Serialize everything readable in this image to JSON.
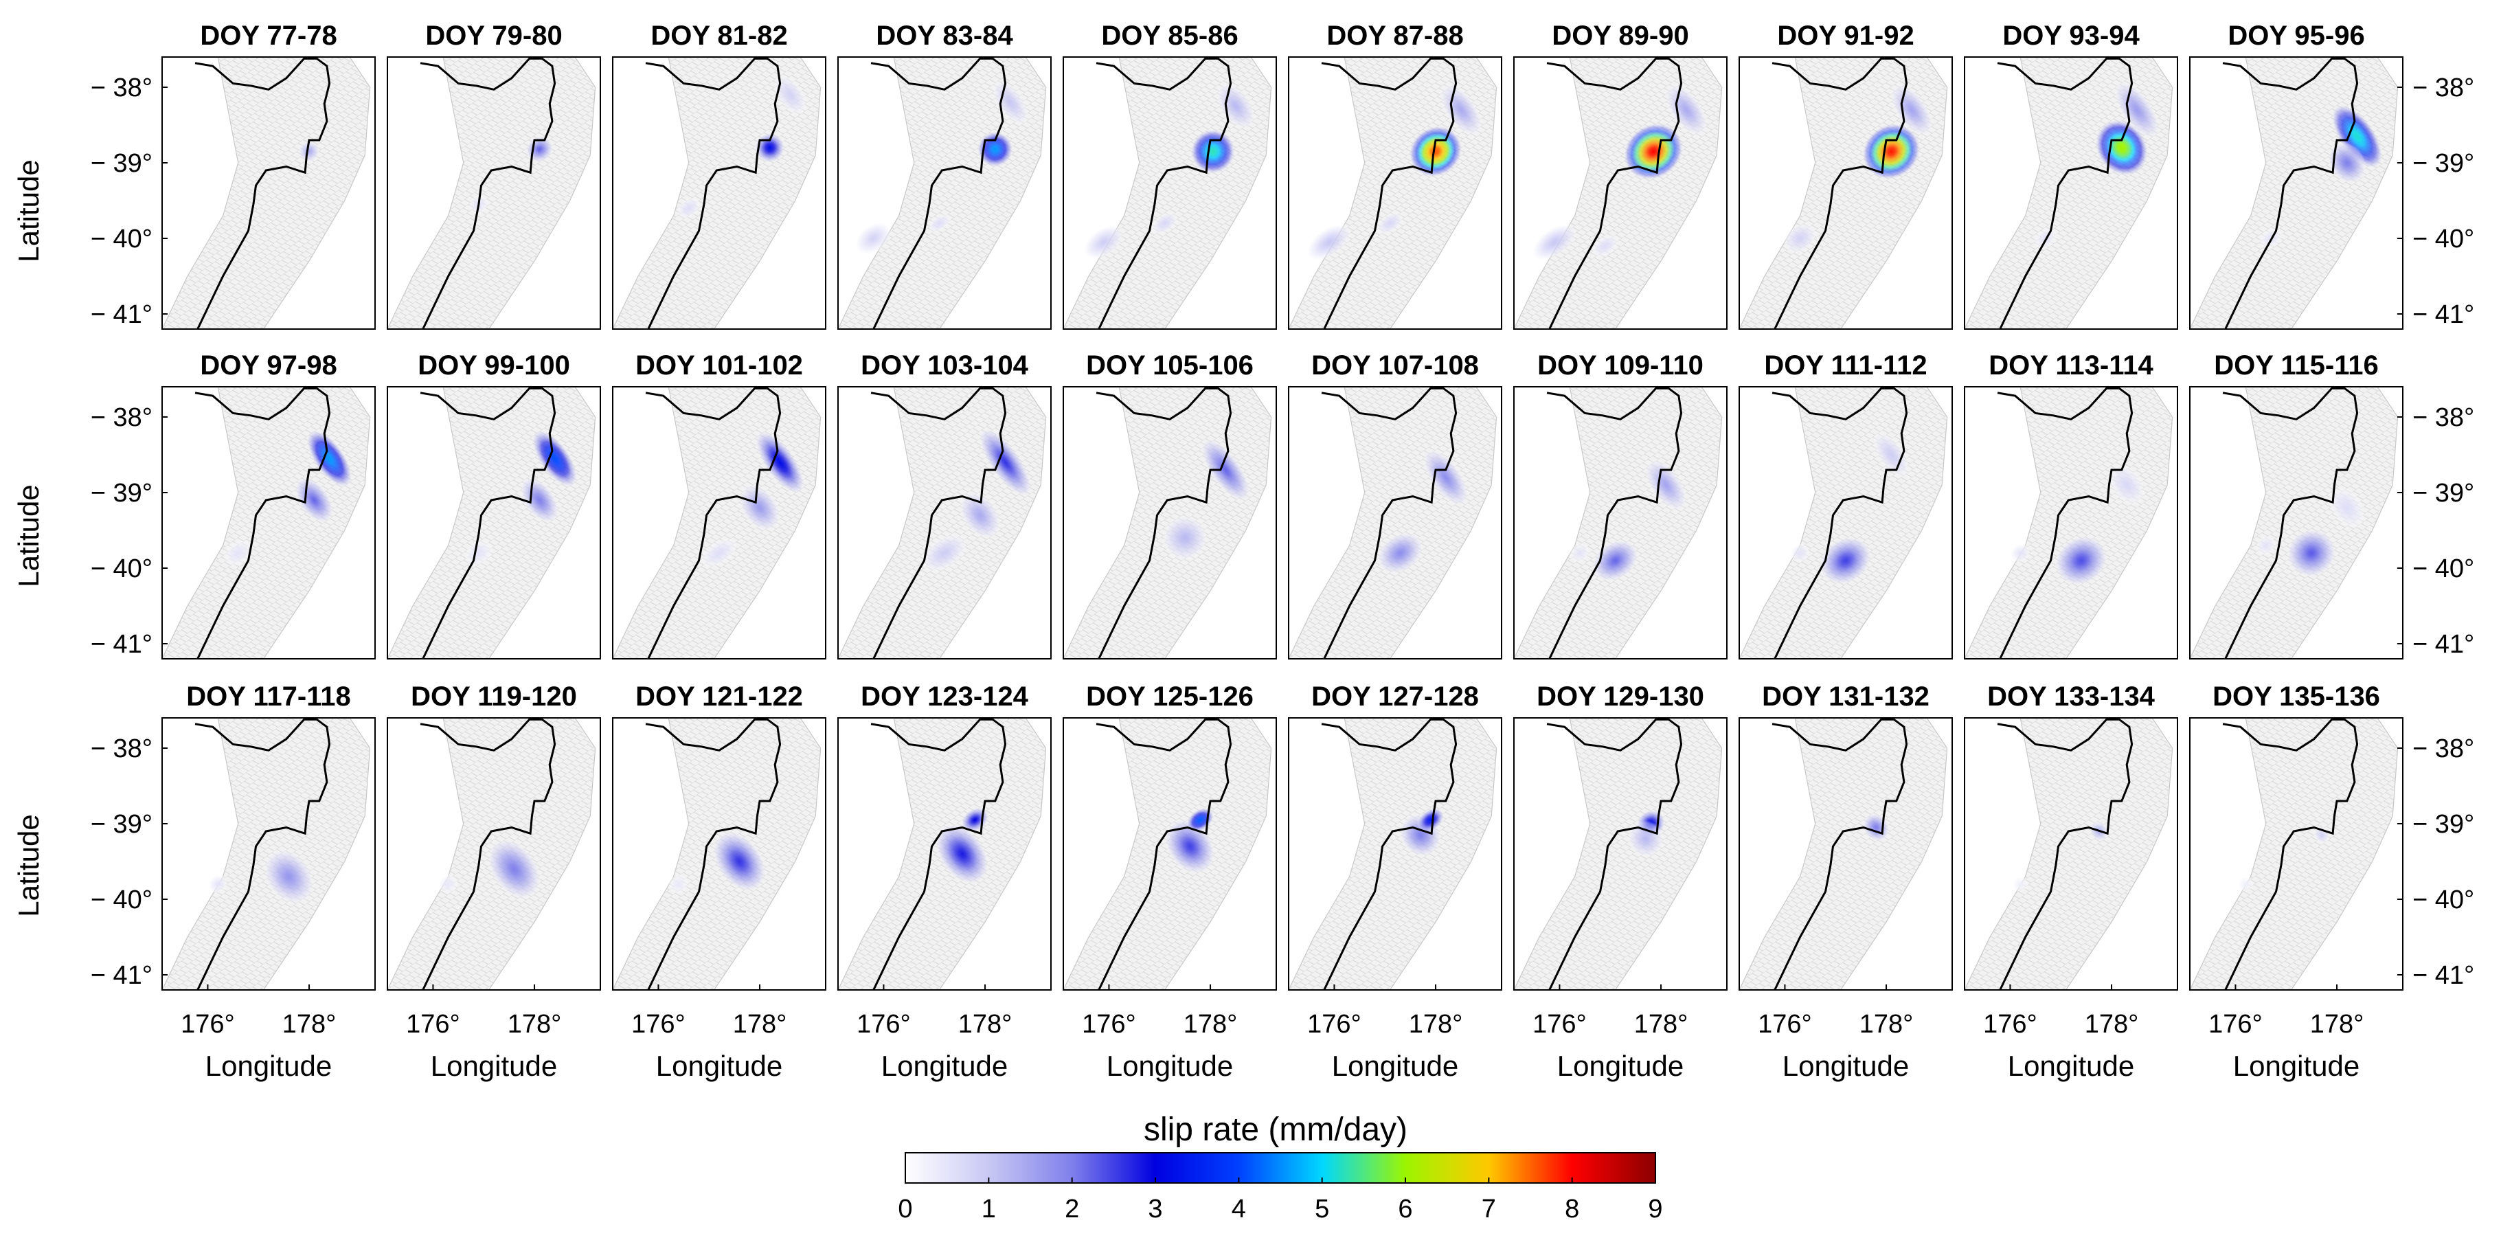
{
  "figure": {
    "y_axis_label": "Latitude",
    "x_axis_label": "Longitude",
    "colorbar_title": "slip rate (mm/day)"
  },
  "axes": {
    "lat_ticks": [
      38,
      39,
      40,
      41
    ],
    "lat_tick_labels": [
      "38°",
      "39°",
      "40°",
      "41°"
    ],
    "lat_range": [
      37.6,
      41.2
    ],
    "lon_ticks": [
      176,
      178
    ],
    "lon_tick_labels": [
      "176°",
      "178°"
    ],
    "lon_range": [
      175.1,
      179.3
    ]
  },
  "colorbar": {
    "ticks": [
      0,
      1,
      2,
      3,
      4,
      5,
      6,
      7,
      8,
      9
    ],
    "tick_labels": [
      "0",
      "1",
      "2",
      "3",
      "4",
      "5",
      "6",
      "7",
      "8",
      "9"
    ],
    "range": [
      0,
      9
    ],
    "colors": [
      "#ffffff",
      "#c8c8f4",
      "#8080ec",
      "#0000e0",
      "#0040ff",
      "#00d8ff",
      "#9cf500",
      "#ffc800",
      "#ff0000",
      "#8c0000"
    ]
  },
  "panels": [
    {
      "title": "DOY 77-78",
      "patches": [
        {
          "lon": 178.0,
          "lat": 38.85,
          "peak": 1.4,
          "rlon": 0.22,
          "rlat": 0.14
        }
      ]
    },
    {
      "title": "DOY 79-80",
      "patches": [
        {
          "lon": 178.1,
          "lat": 38.82,
          "peak": 2.2,
          "rlon": 0.28,
          "rlat": 0.17
        },
        {
          "lon": 176.9,
          "lat": 39.55,
          "peak": 0.5,
          "rlon": 0.2,
          "rlat": 0.12
        }
      ]
    },
    {
      "title": "DOY 81-82",
      "patches": [
        {
          "lon": 178.2,
          "lat": 38.8,
          "peak": 3.2,
          "rlon": 0.3,
          "rlat": 0.2
        },
        {
          "lon": 178.6,
          "lat": 38.1,
          "peak": 0.8,
          "rlon": 0.25,
          "rlat": 0.3
        },
        {
          "lon": 176.6,
          "lat": 39.6,
          "peak": 0.6,
          "rlon": 0.25,
          "rlat": 0.12
        }
      ]
    },
    {
      "title": "DOY 83-84",
      "patches": [
        {
          "lon": 178.2,
          "lat": 38.82,
          "peak": 4.6,
          "rlon": 0.36,
          "rlat": 0.24
        },
        {
          "lon": 178.5,
          "lat": 38.2,
          "peak": 1.0,
          "rlon": 0.25,
          "rlat": 0.35
        },
        {
          "lon": 175.8,
          "lat": 40.0,
          "peak": 0.8,
          "rlon": 0.4,
          "rlat": 0.18
        },
        {
          "lon": 177.1,
          "lat": 39.8,
          "peak": 0.6,
          "rlon": 0.25,
          "rlat": 0.1
        }
      ]
    },
    {
      "title": "DOY 85-86",
      "patches": [
        {
          "lon": 178.05,
          "lat": 38.85,
          "peak": 5.3,
          "rlon": 0.45,
          "rlat": 0.3
        },
        {
          "lon": 178.5,
          "lat": 38.25,
          "peak": 1.2,
          "rlon": 0.3,
          "rlat": 0.35
        },
        {
          "lon": 175.9,
          "lat": 40.05,
          "peak": 0.9,
          "rlon": 0.45,
          "rlat": 0.18
        },
        {
          "lon": 177.1,
          "lat": 39.8,
          "peak": 0.7,
          "rlon": 0.3,
          "rlat": 0.12
        }
      ]
    },
    {
      "title": "DOY 87-88",
      "patches": [
        {
          "lon": 178.0,
          "lat": 38.85,
          "peak": 7.6,
          "rlon": 0.55,
          "rlat": 0.33
        },
        {
          "lon": 178.5,
          "lat": 38.3,
          "peak": 1.4,
          "rlon": 0.3,
          "rlat": 0.4
        },
        {
          "lon": 175.9,
          "lat": 40.05,
          "peak": 1.0,
          "rlon": 0.5,
          "rlat": 0.18
        },
        {
          "lon": 177.1,
          "lat": 39.8,
          "peak": 0.7,
          "rlon": 0.3,
          "rlat": 0.12
        }
      ]
    },
    {
      "title": "DOY 89-90",
      "patches": [
        {
          "lon": 177.85,
          "lat": 38.85,
          "peak": 8.0,
          "rlon": 0.62,
          "rlat": 0.36
        },
        {
          "lon": 178.5,
          "lat": 38.3,
          "peak": 1.4,
          "rlon": 0.3,
          "rlat": 0.4
        },
        {
          "lon": 175.9,
          "lat": 40.05,
          "peak": 1.0,
          "rlon": 0.5,
          "rlat": 0.18
        },
        {
          "lon": 176.9,
          "lat": 40.1,
          "peak": 0.6,
          "rlon": 0.3,
          "rlat": 0.12
        }
      ]
    },
    {
      "title": "DOY 91-92",
      "patches": [
        {
          "lon": 178.1,
          "lat": 38.85,
          "peak": 7.9,
          "rlon": 0.6,
          "rlat": 0.36
        },
        {
          "lon": 178.5,
          "lat": 38.3,
          "peak": 1.5,
          "rlon": 0.3,
          "rlat": 0.4
        },
        {
          "lon": 176.3,
          "lat": 40.0,
          "peak": 0.8,
          "rlon": 0.35,
          "rlat": 0.18
        }
      ]
    },
    {
      "title": "DOY 93-94",
      "patches": [
        {
          "lon": 178.2,
          "lat": 38.8,
          "peak": 6.1,
          "rlon": 0.5,
          "rlat": 0.4
        },
        {
          "lon": 178.5,
          "lat": 38.3,
          "peak": 1.6,
          "rlon": 0.3,
          "rlat": 0.45
        },
        {
          "lon": 176.7,
          "lat": 40.0,
          "peak": 0.5,
          "rlon": 0.25,
          "rlat": 0.12
        }
      ]
    },
    {
      "title": "DOY 95-96",
      "patches": [
        {
          "lon": 178.4,
          "lat": 38.65,
          "peak": 5.2,
          "rlon": 0.35,
          "rlat": 0.5
        },
        {
          "lon": 178.2,
          "lat": 39.0,
          "peak": 2.0,
          "rlon": 0.35,
          "rlat": 0.3
        },
        {
          "lon": 176.7,
          "lat": 40.0,
          "peak": 0.5,
          "rlon": 0.25,
          "rlat": 0.12
        }
      ]
    },
    {
      "title": "DOY 97-98",
      "patches": [
        {
          "lon": 178.4,
          "lat": 38.55,
          "peak": 4.6,
          "rlon": 0.3,
          "rlat": 0.45
        },
        {
          "lon": 178.1,
          "lat": 39.1,
          "peak": 2.2,
          "rlon": 0.3,
          "rlat": 0.35
        },
        {
          "lon": 176.6,
          "lat": 39.8,
          "peak": 0.5,
          "rlon": 0.3,
          "rlat": 0.15
        }
      ]
    },
    {
      "title": "DOY 99-100",
      "patches": [
        {
          "lon": 178.4,
          "lat": 38.55,
          "peak": 4.1,
          "rlon": 0.3,
          "rlat": 0.45
        },
        {
          "lon": 178.1,
          "lat": 39.1,
          "peak": 2.0,
          "rlon": 0.3,
          "rlat": 0.35
        },
        {
          "lon": 176.9,
          "lat": 39.8,
          "peak": 0.5,
          "rlon": 0.3,
          "rlat": 0.15
        }
      ]
    },
    {
      "title": "DOY 101-102",
      "patches": [
        {
          "lon": 178.4,
          "lat": 38.6,
          "peak": 3.2,
          "rlon": 0.3,
          "rlat": 0.5
        },
        {
          "lon": 178.0,
          "lat": 39.2,
          "peak": 1.6,
          "rlon": 0.35,
          "rlat": 0.35
        },
        {
          "lon": 177.2,
          "lat": 39.8,
          "peak": 0.6,
          "rlon": 0.4,
          "rlat": 0.15
        }
      ]
    },
    {
      "title": "DOY 103-104",
      "patches": [
        {
          "lon": 178.4,
          "lat": 38.6,
          "peak": 2.6,
          "rlon": 0.3,
          "rlat": 0.55
        },
        {
          "lon": 177.9,
          "lat": 39.3,
          "peak": 1.4,
          "rlon": 0.35,
          "rlat": 0.35
        },
        {
          "lon": 177.2,
          "lat": 39.8,
          "peak": 0.9,
          "rlon": 0.5,
          "rlat": 0.2
        }
      ]
    },
    {
      "title": "DOY 105-106",
      "patches": [
        {
          "lon": 178.3,
          "lat": 38.7,
          "peak": 2.2,
          "rlon": 0.3,
          "rlat": 0.5
        },
        {
          "lon": 177.5,
          "lat": 39.6,
          "peak": 1.2,
          "rlon": 0.45,
          "rlat": 0.3
        }
      ]
    },
    {
      "title": "DOY 107-108",
      "patches": [
        {
          "lon": 178.2,
          "lat": 38.8,
          "peak": 1.8,
          "rlon": 0.3,
          "rlat": 0.45
        },
        {
          "lon": 177.3,
          "lat": 39.8,
          "peak": 1.8,
          "rlon": 0.5,
          "rlat": 0.25
        }
      ]
    },
    {
      "title": "DOY 109-110",
      "patches": [
        {
          "lon": 178.1,
          "lat": 38.9,
          "peak": 1.5,
          "rlon": 0.3,
          "rlat": 0.4
        },
        {
          "lon": 177.1,
          "lat": 39.9,
          "peak": 2.2,
          "rlon": 0.5,
          "rlat": 0.25
        },
        {
          "lon": 176.4,
          "lat": 39.8,
          "peak": 0.5,
          "rlon": 0.2,
          "rlat": 0.12
        }
      ]
    },
    {
      "title": "DOY 111-112",
      "patches": [
        {
          "lon": 177.2,
          "lat": 39.9,
          "peak": 2.5,
          "rlon": 0.55,
          "rlat": 0.3
        },
        {
          "lon": 178.1,
          "lat": 38.5,
          "peak": 0.9,
          "rlon": 0.25,
          "rlat": 0.35
        },
        {
          "lon": 176.3,
          "lat": 39.8,
          "peak": 0.5,
          "rlon": 0.2,
          "rlat": 0.12
        }
      ]
    },
    {
      "title": "DOY 113-114",
      "patches": [
        {
          "lon": 177.4,
          "lat": 39.9,
          "peak": 2.4,
          "rlon": 0.55,
          "rlat": 0.32
        },
        {
          "lon": 178.3,
          "lat": 38.9,
          "peak": 0.7,
          "rlon": 0.3,
          "rlat": 0.3
        },
        {
          "lon": 176.2,
          "lat": 39.8,
          "peak": 0.5,
          "rlon": 0.2,
          "rlat": 0.12
        }
      ]
    },
    {
      "title": "DOY 115-116",
      "patches": [
        {
          "lon": 177.5,
          "lat": 39.8,
          "peak": 2.3,
          "rlon": 0.5,
          "rlat": 0.32
        },
        {
          "lon": 178.2,
          "lat": 39.2,
          "peak": 0.6,
          "rlon": 0.3,
          "rlat": 0.3
        },
        {
          "lon": 176.6,
          "lat": 39.7,
          "peak": 0.5,
          "rlon": 0.2,
          "rlat": 0.12
        }
      ]
    },
    {
      "title": "DOY 117-118",
      "patches": [
        {
          "lon": 177.6,
          "lat": 39.7,
          "peak": 1.7,
          "rlon": 0.45,
          "rlat": 0.4
        },
        {
          "lon": 176.2,
          "lat": 39.8,
          "peak": 0.5,
          "rlon": 0.2,
          "rlat": 0.12
        }
      ]
    },
    {
      "title": "DOY 119-120",
      "patches": [
        {
          "lon": 177.6,
          "lat": 39.6,
          "peak": 2.0,
          "rlon": 0.45,
          "rlat": 0.45
        },
        {
          "lon": 176.3,
          "lat": 39.8,
          "peak": 0.4,
          "rlon": 0.2,
          "rlat": 0.12
        }
      ]
    },
    {
      "title": "DOY 121-122",
      "patches": [
        {
          "lon": 177.6,
          "lat": 39.5,
          "peak": 2.6,
          "rlon": 0.45,
          "rlat": 0.45
        },
        {
          "lon": 176.4,
          "lat": 39.8,
          "peak": 0.4,
          "rlon": 0.2,
          "rlat": 0.12
        }
      ]
    },
    {
      "title": "DOY 123-124",
      "patches": [
        {
          "lon": 177.55,
          "lat": 39.4,
          "peak": 2.8,
          "rlon": 0.45,
          "rlat": 0.45
        },
        {
          "lon": 177.8,
          "lat": 38.95,
          "peak": 3.0,
          "rlon": 0.3,
          "rlat": 0.15
        }
      ]
    },
    {
      "title": "DOY 125-126",
      "patches": [
        {
          "lon": 177.6,
          "lat": 39.3,
          "peak": 2.5,
          "rlon": 0.45,
          "rlat": 0.4
        },
        {
          "lon": 177.8,
          "lat": 38.95,
          "peak": 4.2,
          "rlon": 0.3,
          "rlat": 0.14
        }
      ]
    },
    {
      "title": "DOY 127-128",
      "patches": [
        {
          "lon": 177.7,
          "lat": 39.15,
          "peak": 2.0,
          "rlon": 0.4,
          "rlat": 0.3
        },
        {
          "lon": 177.9,
          "lat": 38.95,
          "peak": 3.4,
          "rlon": 0.3,
          "rlat": 0.14
        }
      ]
    },
    {
      "title": "DOY 129-130",
      "patches": [
        {
          "lon": 177.8,
          "lat": 39.0,
          "peak": 3.2,
          "rlon": 0.3,
          "rlat": 0.18
        },
        {
          "lon": 177.7,
          "lat": 39.2,
          "peak": 1.2,
          "rlon": 0.35,
          "rlat": 0.25
        }
      ]
    },
    {
      "title": "DOY 131-132",
      "patches": [
        {
          "lon": 177.8,
          "lat": 39.05,
          "peak": 2.0,
          "rlon": 0.25,
          "rlat": 0.2
        }
      ]
    },
    {
      "title": "DOY 133-134",
      "patches": [
        {
          "lon": 177.75,
          "lat": 39.1,
          "peak": 1.3,
          "rlon": 0.18,
          "rlat": 0.14
        },
        {
          "lon": 176.2,
          "lat": 39.8,
          "peak": 0.3,
          "rlon": 0.15,
          "rlat": 0.1
        }
      ]
    },
    {
      "title": "DOY 135-136",
      "patches": [
        {
          "lon": 177.7,
          "lat": 39.15,
          "peak": 0.8,
          "rlon": 0.15,
          "rlat": 0.12
        },
        {
          "lon": 176.2,
          "lat": 39.8,
          "peak": 0.3,
          "rlon": 0.15,
          "rlat": 0.1
        }
      ]
    }
  ]
}
